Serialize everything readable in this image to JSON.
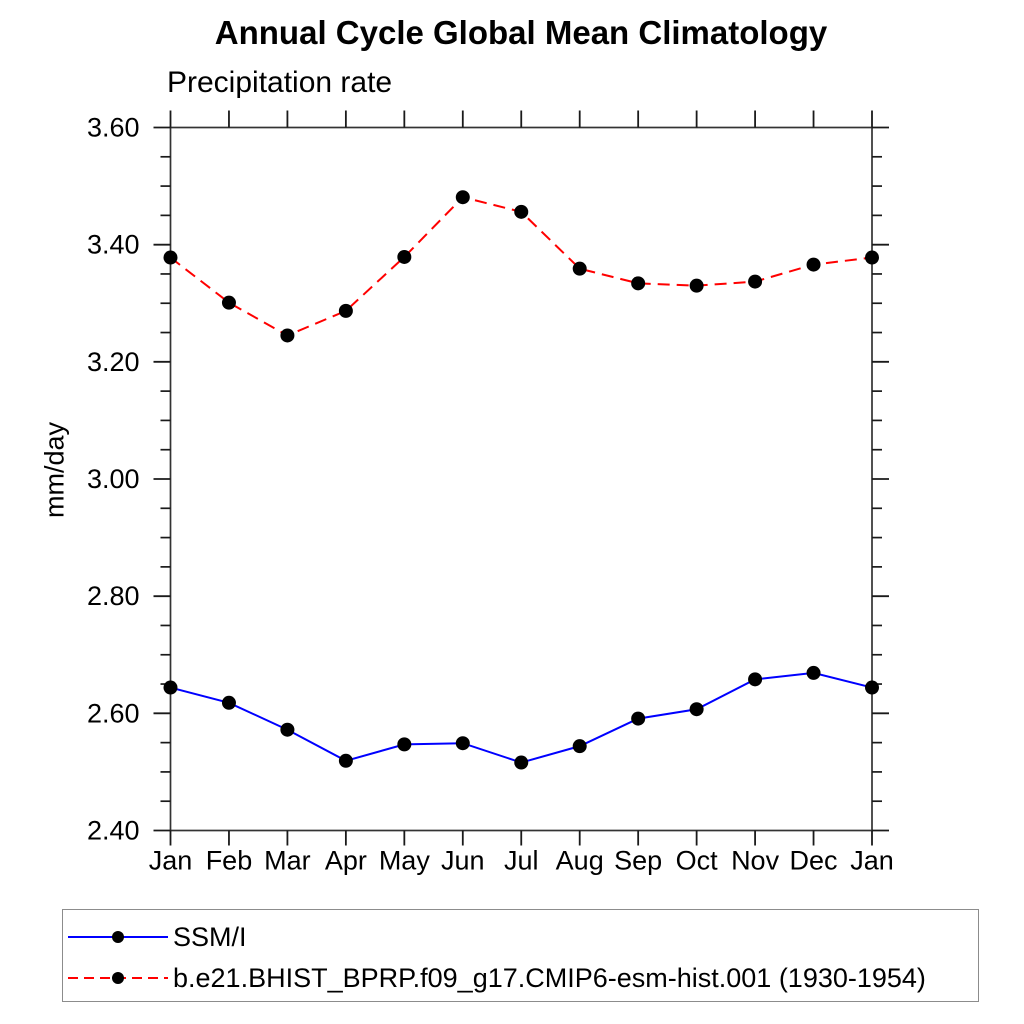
{
  "chart_data": {
    "type": "line",
    "title": "Annual Cycle Global Mean Climatology",
    "subtitle": "Precipitation rate",
    "ylabel": "mm/day",
    "categories": [
      "Jan",
      "Feb",
      "Mar",
      "Apr",
      "May",
      "Jun",
      "Jul",
      "Aug",
      "Sep",
      "Oct",
      "Nov",
      "Dec",
      "Jan"
    ],
    "ylim": [
      2.4,
      3.6
    ],
    "ytick_labels": [
      "3.60",
      "3.40",
      "3.20",
      "3.00",
      "2.80",
      "2.60",
      "2.40"
    ],
    "ytick_major_step": 0.2,
    "ytick_minor_step": 0.05,
    "grid": false,
    "legend_position": "bottom-left",
    "series": [
      {
        "name": "SSM/I",
        "slug": "ssmi",
        "color": "#0000ff",
        "line_style": "solid",
        "marker": "filled-circle",
        "marker_color": "#000000",
        "values": [
          2.644,
          2.618,
          2.572,
          2.519,
          2.547,
          2.549,
          2.516,
          2.544,
          2.591,
          2.607,
          2.658,
          2.669,
          2.644
        ]
      },
      {
        "name": "b.e21.BHIST_BPRP.f09_g17.CMIP6-esm-hist.001 (1930-1954)",
        "slug": "cesm-hist-model",
        "color": "#ff0000",
        "line_style": "dashed",
        "marker": "filled-circle",
        "marker_color": "#000000",
        "values": [
          3.378,
          3.301,
          3.245,
          3.287,
          3.379,
          3.481,
          3.456,
          3.359,
          3.334,
          3.33,
          3.337,
          3.366,
          3.378
        ]
      }
    ]
  },
  "legend": {
    "border_color": "#8c8c8c",
    "marker_color": "#000000"
  },
  "colors": {
    "frame": "#333333",
    "ticks": "#1a1a1a",
    "text": "#000000",
    "background": "#ffffff"
  }
}
